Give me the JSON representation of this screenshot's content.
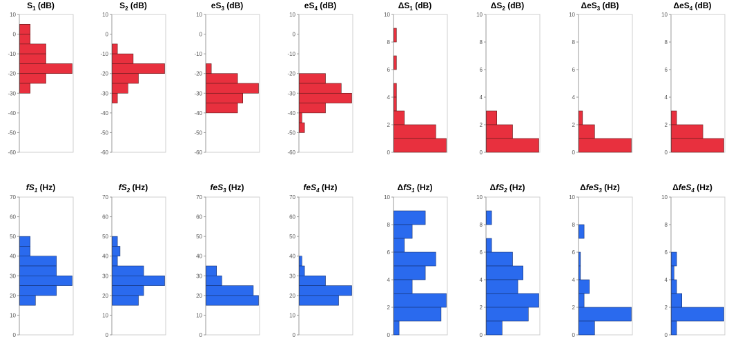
{
  "colors": {
    "red": "#e8303e",
    "blue": "#2a6aee",
    "frame": "#cfcfcf",
    "axis": "#9a9a9a"
  },
  "chart_data": [
    {
      "type": "bar",
      "orientation": "horizontal-histogram",
      "title": {
        "pre": "S",
        "sub": "1",
        "post": " (dB)",
        "italic": false
      },
      "color": "red",
      "ylim": [
        -60,
        10
      ],
      "yticks": [
        "10",
        "0",
        "-10",
        "-20",
        "-30",
        "-40",
        "-50",
        "-60"
      ],
      "bins": [
        [
          0,
          5,
          2
        ],
        [
          -5,
          0,
          2
        ],
        [
          -10,
          -5,
          5
        ],
        [
          -15,
          -10,
          5
        ],
        [
          -20,
          -15,
          10
        ],
        [
          -25,
          -20,
          5
        ],
        [
          -30,
          -25,
          2
        ]
      ]
    },
    {
      "type": "bar",
      "orientation": "horizontal-histogram",
      "title": {
        "pre": "S",
        "sub": "2",
        "post": " (dB)",
        "italic": false
      },
      "color": "red",
      "ylim": [
        -60,
        10
      ],
      "yticks": [
        "10",
        "0",
        "-10",
        "-20",
        "-30",
        "-40",
        "-50",
        "-60"
      ],
      "bins": [
        [
          -10,
          -5,
          1
        ],
        [
          -15,
          -10,
          4
        ],
        [
          -20,
          -15,
          10
        ],
        [
          -25,
          -20,
          5
        ],
        [
          -30,
          -25,
          3
        ],
        [
          -35,
          -30,
          1
        ]
      ]
    },
    {
      "type": "bar",
      "orientation": "horizontal-histogram",
      "title": {
        "pre": "eS",
        "sub": "3",
        "post": " (dB)",
        "italic": false
      },
      "color": "red",
      "ylim": [
        -60,
        10
      ],
      "yticks": [
        "10",
        "0",
        "-10",
        "-20",
        "-30",
        "-40",
        "-50",
        "-60"
      ],
      "bins": [
        [
          -20,
          -15,
          1
        ],
        [
          -25,
          -20,
          6
        ],
        [
          -30,
          -25,
          10
        ],
        [
          -35,
          -30,
          7
        ],
        [
          -40,
          -35,
          6
        ]
      ]
    },
    {
      "type": "bar",
      "orientation": "horizontal-histogram",
      "title": {
        "pre": "eS",
        "sub": "4",
        "post": " (dB)",
        "italic": false
      },
      "color": "red",
      "ylim": [
        -60,
        10
      ],
      "yticks": [
        "10",
        "0",
        "-10",
        "-20",
        "-30",
        "-40",
        "-50",
        "-60"
      ],
      "bins": [
        [
          -25,
          -20,
          5
        ],
        [
          -30,
          -25,
          8
        ],
        [
          -35,
          -30,
          10
        ],
        [
          -40,
          -35,
          5
        ],
        [
          -45,
          -40,
          0.5
        ],
        [
          -50,
          -45,
          1
        ]
      ]
    },
    {
      "type": "bar",
      "orientation": "horizontal-histogram",
      "title": {
        "pre": "ΔS",
        "sub": "1",
        "post": " (dB)",
        "italic": false
      },
      "color": "red",
      "ylim": [
        0,
        10
      ],
      "yticks": [
        "10",
        "8",
        "6",
        "4",
        "2",
        "0"
      ],
      "bins": [
        [
          8,
          9,
          0.5
        ],
        [
          6,
          7,
          0.5
        ],
        [
          4,
          5,
          0.5
        ],
        [
          3,
          4,
          0.5
        ],
        [
          2,
          3,
          2
        ],
        [
          1,
          2,
          8
        ],
        [
          0,
          1,
          10
        ]
      ]
    },
    {
      "type": "bar",
      "orientation": "horizontal-histogram",
      "title": {
        "pre": "ΔS",
        "sub": "2",
        "post": " (dB)",
        "italic": false
      },
      "color": "red",
      "ylim": [
        0,
        10
      ],
      "yticks": [
        "10",
        "8",
        "6",
        "4",
        "2",
        "0"
      ],
      "bins": [
        [
          2,
          3,
          2
        ],
        [
          1,
          2,
          5
        ],
        [
          0,
          1,
          10
        ]
      ]
    },
    {
      "type": "bar",
      "orientation": "horizontal-histogram",
      "title": {
        "pre": "ΔeS",
        "sub": "3",
        "post": " (dB)",
        "italic": false
      },
      "color": "red",
      "ylim": [
        0,
        10
      ],
      "yticks": [
        "10",
        "8",
        "6",
        "4",
        "2",
        "0"
      ],
      "bins": [
        [
          2,
          3,
          0.7
        ],
        [
          1,
          2,
          3
        ],
        [
          0,
          1,
          10
        ]
      ]
    },
    {
      "type": "bar",
      "orientation": "horizontal-histogram",
      "title": {
        "pre": "ΔeS",
        "sub": "4",
        "post": " (dB)",
        "italic": false
      },
      "color": "red",
      "ylim": [
        0,
        10
      ],
      "yticks": [
        "10",
        "8",
        "6",
        "4",
        "2",
        "0"
      ],
      "bins": [
        [
          2,
          3,
          1
        ],
        [
          1,
          2,
          6
        ],
        [
          0,
          1,
          10
        ]
      ]
    },
    {
      "type": "bar",
      "orientation": "horizontal-histogram",
      "title": {
        "pre": "fS",
        "sub": "1",
        "post": " (Hz)",
        "italic": true
      },
      "color": "blue",
      "ylim": [
        0,
        70
      ],
      "yticks": [
        "70",
        "60",
        "50",
        "40",
        "30",
        "20",
        "10",
        "0"
      ],
      "bins": [
        [
          45,
          50,
          2
        ],
        [
          40,
          45,
          2
        ],
        [
          35,
          40,
          7
        ],
        [
          30,
          35,
          7
        ],
        [
          25,
          30,
          10
        ],
        [
          20,
          25,
          7
        ],
        [
          15,
          20,
          3
        ]
      ]
    },
    {
      "type": "bar",
      "orientation": "horizontal-histogram",
      "title": {
        "pre": "fS",
        "sub": "2",
        "post": " (Hz)",
        "italic": true
      },
      "color": "blue",
      "ylim": [
        0,
        70
      ],
      "yticks": [
        "70",
        "60",
        "50",
        "40",
        "30",
        "20",
        "10",
        "0"
      ],
      "bins": [
        [
          45,
          50,
          1
        ],
        [
          40,
          45,
          1.5
        ],
        [
          35,
          40,
          1
        ],
        [
          30,
          35,
          6
        ],
        [
          25,
          30,
          10
        ],
        [
          20,
          25,
          6
        ],
        [
          15,
          20,
          5
        ]
      ]
    },
    {
      "type": "bar",
      "orientation": "horizontal-histogram",
      "title": {
        "pre": "feS",
        "sub": "3",
        "post": " (Hz)",
        "italic": true
      },
      "color": "blue",
      "ylim": [
        0,
        70
      ],
      "yticks": [
        "70",
        "60",
        "50",
        "40",
        "30",
        "20",
        "10",
        "0"
      ],
      "bins": [
        [
          30,
          35,
          2
        ],
        [
          25,
          30,
          3
        ],
        [
          20,
          25,
          9
        ],
        [
          15,
          20,
          10
        ]
      ]
    },
    {
      "type": "bar",
      "orientation": "horizontal-histogram",
      "title": {
        "pre": "feS",
        "sub": "4",
        "post": " (Hz)",
        "italic": true
      },
      "color": "blue",
      "ylim": [
        0,
        70
      ],
      "yticks": [
        "70",
        "60",
        "50",
        "40",
        "30",
        "20",
        "10",
        "0"
      ],
      "bins": [
        [
          35,
          40,
          0.5
        ],
        [
          30,
          35,
          1
        ],
        [
          25,
          30,
          5
        ],
        [
          20,
          25,
          10
        ],
        [
          15,
          20,
          7.5
        ]
      ]
    },
    {
      "type": "bar",
      "orientation": "horizontal-histogram",
      "title": {
        "pre": "Δ",
        "ital": "fS",
        "sub": "1",
        "post": " (Hz)",
        "italic": true
      },
      "color": "blue",
      "ylim": [
        0,
        10
      ],
      "yticks": [
        "10",
        "8",
        "6",
        "4",
        "2",
        "0"
      ],
      "bins": [
        [
          8,
          9,
          6
        ],
        [
          7,
          8,
          3.5
        ],
        [
          6,
          7,
          2
        ],
        [
          5,
          6,
          8
        ],
        [
          4,
          5,
          6
        ],
        [
          3,
          4,
          3.5
        ],
        [
          2,
          3,
          10
        ],
        [
          1,
          2,
          9
        ],
        [
          0,
          1,
          1
        ]
      ]
    },
    {
      "type": "bar",
      "orientation": "horizontal-histogram",
      "title": {
        "pre": "Δ",
        "ital": "fS",
        "sub": "2",
        "post": " (Hz)",
        "italic": true
      },
      "color": "blue",
      "ylim": [
        0,
        10
      ],
      "yticks": [
        "10",
        "8",
        "6",
        "4",
        "2",
        "0"
      ],
      "bins": [
        [
          8,
          9,
          1
        ],
        [
          6,
          7,
          1
        ],
        [
          5,
          6,
          5
        ],
        [
          4,
          5,
          7
        ],
        [
          3,
          4,
          6
        ],
        [
          2,
          3,
          10
        ],
        [
          1,
          2,
          8
        ],
        [
          0,
          1,
          3
        ]
      ]
    },
    {
      "type": "bar",
      "orientation": "horizontal-histogram",
      "title": {
        "pre": "Δ",
        "ital": "feS",
        "sub": "3",
        "post": " (Hz)",
        "italic": true
      },
      "color": "blue",
      "ylim": [
        0,
        10
      ],
      "yticks": [
        "10",
        "8",
        "6",
        "4",
        "2",
        "0"
      ],
      "bins": [
        [
          7,
          8,
          1
        ],
        [
          5,
          6,
          0.3
        ],
        [
          4,
          5,
          0.3
        ],
        [
          3,
          4,
          2
        ],
        [
          2,
          3,
          1
        ],
        [
          1,
          2,
          10
        ],
        [
          0,
          1,
          3
        ]
      ]
    },
    {
      "type": "bar",
      "orientation": "horizontal-histogram",
      "title": {
        "pre": "Δ",
        "ital": "feS",
        "sub": "4",
        "post": " (Hz)",
        "italic": true
      },
      "color": "blue",
      "ylim": [
        0,
        10
      ],
      "yticks": [
        "10",
        "8",
        "6",
        "4",
        "2",
        "0"
      ],
      "bins": [
        [
          5,
          6,
          1
        ],
        [
          4,
          5,
          0.5
        ],
        [
          3,
          4,
          1
        ],
        [
          2,
          3,
          2
        ],
        [
          1,
          2,
          10
        ],
        [
          0,
          1,
          1
        ]
      ]
    }
  ]
}
